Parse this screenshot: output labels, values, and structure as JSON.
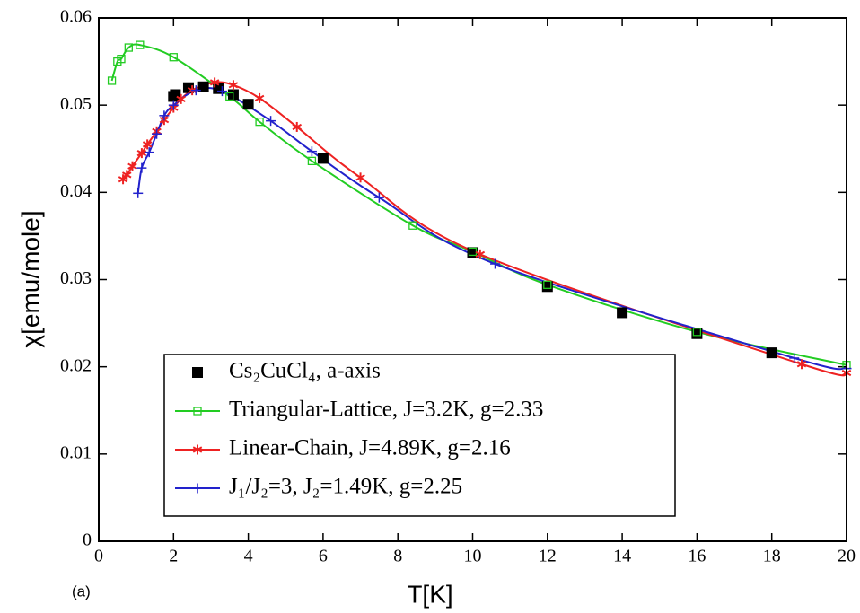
{
  "chart_data": {
    "type": "line",
    "xlabel": "T[K]",
    "ylabel": "χ[emu/mole]",
    "annotation": "(a)",
    "xlim": [
      0,
      20
    ],
    "xticks": [
      0,
      2,
      4,
      6,
      8,
      10,
      12,
      14,
      16,
      18,
      20
    ],
    "ylim": [
      0,
      0.06
    ],
    "yticks": [
      0,
      0.01,
      0.02,
      0.03,
      0.04,
      0.05,
      0.06
    ],
    "legend": "lower-left",
    "series": [
      {
        "name": "Cs₂CuCl₄, a-axis",
        "color": "#000000",
        "marker": "square-filled",
        "line": false,
        "x": [
          2.0,
          2.05,
          2.4,
          2.8,
          3.2,
          3.6,
          4.0,
          6.0,
          10.0,
          12.0,
          14.0,
          16.0,
          18.0
        ],
        "values": [
          0.051,
          0.0512,
          0.052,
          0.0521,
          0.0519,
          0.0512,
          0.0501,
          0.0439,
          0.0331,
          0.0292,
          0.0262,
          0.0238,
          0.0216
        ]
      },
      {
        "name": "Triangular-Lattice, J=3.2K, g=2.33",
        "color": "#22cc22",
        "marker": "square-open",
        "line": true,
        "x": [
          0.35,
          0.5,
          0.6,
          0.8,
          1.1,
          2.0,
          3.5,
          4.3,
          5.7,
          8.4,
          10.0,
          12.0,
          16.0,
          20.0
        ],
        "values": [
          0.0528,
          0.055,
          0.0553,
          0.0566,
          0.0569,
          0.0555,
          0.051,
          0.0481,
          0.0436,
          0.0362,
          0.0332,
          0.0294,
          0.024,
          0.0202
        ]
      },
      {
        "name": "Linear-Chain, J=4.89K, g=2.16",
        "color": "#ee2222",
        "marker": "asterisk",
        "line": true,
        "x": [
          0.65,
          0.75,
          0.9,
          1.15,
          1.3,
          1.55,
          1.75,
          2.0,
          2.2,
          2.5,
          3.1,
          3.6,
          4.3,
          5.3,
          7.0,
          10.2,
          18.8,
          20.0
        ],
        "values": [
          0.0415,
          0.042,
          0.043,
          0.0445,
          0.0455,
          0.047,
          0.0483,
          0.0497,
          0.0507,
          0.0517,
          0.0526,
          0.0523,
          0.0508,
          0.0475,
          0.0417,
          0.0329,
          0.0203,
          0.0193
        ]
      },
      {
        "name": "J₁/J₂=3, J₂=1.49K, g=2.25",
        "color": "#2222cc",
        "marker": "plus",
        "line": true,
        "x": [
          1.05,
          1.15,
          1.35,
          1.55,
          1.75,
          2.0,
          2.6,
          3.3,
          4.6,
          5.7,
          7.5,
          10.6,
          18.6,
          20.0
        ],
        "values": [
          0.0399,
          0.0428,
          0.0446,
          0.0467,
          0.0488,
          0.05,
          0.0517,
          0.0516,
          0.0482,
          0.0447,
          0.0394,
          0.0318,
          0.021,
          0.0198
        ]
      }
    ]
  }
}
